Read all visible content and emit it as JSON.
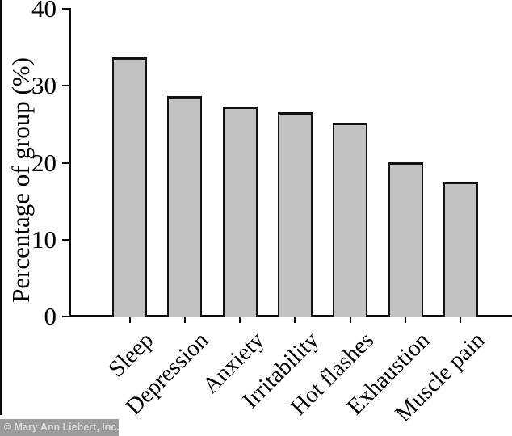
{
  "figure": {
    "watermark": "© Mary Ann Liebert, Inc."
  },
  "chart_data": {
    "type": "bar",
    "title": "",
    "categories": [
      "Sleep",
      "Depression",
      "Anxiety",
      "Irritability",
      "Hot flashes",
      "Exhaustion",
      "Muscle pain"
    ],
    "values": [
      33.7,
      28.7,
      27.3,
      26.6,
      25.2,
      20.1,
      17.5
    ],
    "xlabel": "",
    "ylabel": "Percentage of group (%)",
    "ylim": [
      0,
      40
    ],
    "yticks": [
      0,
      10,
      20,
      30,
      40
    ],
    "grid": false,
    "legend": false,
    "bar_fill": "#c2c2c2",
    "bar_border": "#121212",
    "axis_color": "#0a0a0a",
    "background": "#ffffff",
    "watermark_bg": "#9c9c9c",
    "watermark_text_color": "#dcdcdc"
  }
}
